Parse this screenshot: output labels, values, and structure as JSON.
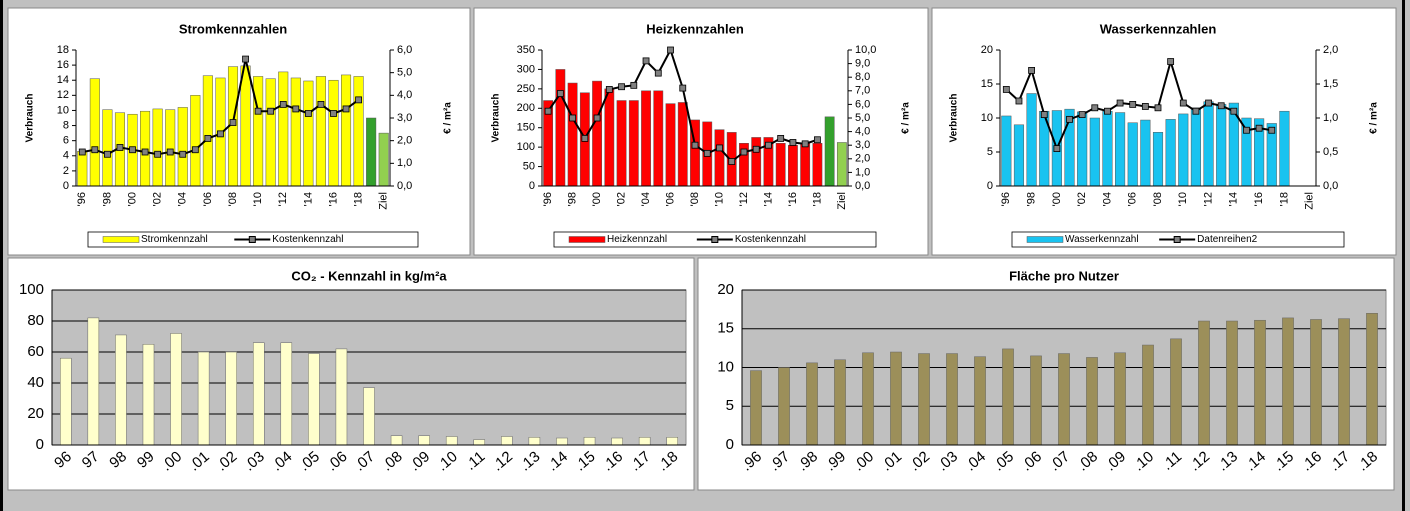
{
  "chart_data": [
    {
      "type": "combo",
      "title": "Stromkennzahlen",
      "ylabel": "Verbrauch",
      "y2label": "€ / m²a",
      "categories": [
        "'96",
        null,
        "'98",
        null,
        "'00",
        null,
        "'02",
        null,
        "'04",
        null,
        "'06",
        null,
        "'08",
        null,
        "'10",
        null,
        "'12",
        null,
        "'14",
        null,
        "'16",
        null,
        "'18",
        null,
        "Ziel"
      ],
      "ylim": [
        0,
        18
      ],
      "yticks": [
        0,
        2,
        4,
        6,
        8,
        10,
        12,
        14,
        16,
        18
      ],
      "y2lim": [
        0,
        6
      ],
      "y2ticks": [
        {
          "value": 0,
          "label": "0,0"
        },
        {
          "value": 1,
          "label": "1,0"
        },
        {
          "value": 2,
          "label": "2,0"
        },
        {
          "value": 3,
          "label": "3,0"
        },
        {
          "value": 4,
          "label": "4,0"
        },
        {
          "value": 5,
          "label": "5,0"
        },
        {
          "value": 6,
          "label": "6,0"
        }
      ],
      "target_colors": [
        "#33a02c",
        "#92d050"
      ],
      "series": [
        {
          "name": "Stromkennzahl",
          "color": "#ffff00",
          "values": [
            4.6,
            14.2,
            10.1,
            9.7,
            9.5,
            9.9,
            10.2,
            10.1,
            10.4,
            12.0,
            14.6,
            14.3,
            15.8,
            15.9,
            14.5,
            14.2,
            15.1,
            14.3,
            13.9,
            14.5,
            14.0,
            14.7,
            14.5,
            9.0,
            7.0
          ]
        },
        {
          "name": "Kostenkennzahl",
          "color": "#000000",
          "marker_color": "#808080",
          "axis": "y2",
          "values": [
            1.5,
            1.6,
            1.4,
            1.7,
            1.6,
            1.5,
            1.4,
            1.5,
            1.4,
            1.6,
            2.1,
            2.3,
            2.8,
            5.6,
            3.3,
            3.3,
            3.6,
            3.4,
            3.2,
            3.6,
            3.2,
            3.4,
            3.8,
            null,
            null
          ]
        }
      ]
    },
    {
      "type": "combo",
      "title": "Heizkennzahlen",
      "ylabel": "Verbrauch",
      "y2label": "€ / m²a",
      "categories": [
        "'96",
        null,
        "'98",
        null,
        "'00",
        null,
        "'02",
        null,
        "'04",
        null,
        "'06",
        null,
        "'08",
        null,
        "'10",
        null,
        "'12",
        null,
        "'14",
        null,
        "'16",
        null,
        "'18",
        null,
        "Ziel"
      ],
      "ylim": [
        0,
        350
      ],
      "yticks": [
        0,
        50,
        100,
        150,
        200,
        250,
        300,
        350
      ],
      "y2lim": [
        0,
        10
      ],
      "y2ticks": [
        {
          "value": 0,
          "label": "0,0"
        },
        {
          "value": 1,
          "label": "1,0"
        },
        {
          "value": 2,
          "label": "2,0"
        },
        {
          "value": 3,
          "label": "3,0"
        },
        {
          "value": 4,
          "label": "4,0"
        },
        {
          "value": 5,
          "label": "5,0"
        },
        {
          "value": 6,
          "label": "6,0"
        },
        {
          "value": 7,
          "label": "7,0"
        },
        {
          "value": 8,
          "label": "8,0"
        },
        {
          "value": 9,
          "label": "9,0"
        },
        {
          "value": 10,
          "label": "10,0"
        }
      ],
      "target_colors": [
        "#33a02c",
        "#92d050"
      ],
      "series": [
        {
          "name": "Heizkennzahl",
          "color": "#ff0000",
          "values": [
            220,
            300,
            265,
            240,
            270,
            250,
            220,
            220,
            245,
            245,
            212,
            215,
            170,
            165,
            145,
            138,
            110,
            125,
            125,
            110,
            105,
            110,
            110,
            178,
            112
          ]
        },
        {
          "name": "Kostenkennzahl",
          "color": "#000000",
          "marker_color": "#808080",
          "axis": "y2",
          "values": [
            5.5,
            6.8,
            5.0,
            3.5,
            5.0,
            7.1,
            7.3,
            7.4,
            9.2,
            8.3,
            10.0,
            7.2,
            3.0,
            2.4,
            2.8,
            1.8,
            2.5,
            2.7,
            3.0,
            3.5,
            3.2,
            3.1,
            3.4,
            null,
            null
          ]
        }
      ]
    },
    {
      "type": "combo",
      "title": "Wasserkennzahlen",
      "ylabel": "Verbrauch",
      "y2label": "€ / m²a",
      "categories": [
        "'96",
        null,
        "'98",
        null,
        "'00",
        null,
        "'02",
        null,
        "'04",
        null,
        "'06",
        null,
        "'08",
        null,
        "'10",
        null,
        "'12",
        null,
        "'14",
        null,
        "'16",
        null,
        "'18",
        null,
        "Ziel"
      ],
      "ylim": [
        0,
        20
      ],
      "yticks": [
        0,
        5,
        10,
        15,
        20
      ],
      "y2lim": [
        0,
        2
      ],
      "y2ticks": [
        {
          "value": 0,
          "label": "0,0"
        },
        {
          "value": 0.5,
          "label": "0,5"
        },
        {
          "value": 1,
          "label": "1,0"
        },
        {
          "value": 1.5,
          "label": "1,5"
        },
        {
          "value": 2,
          "label": "2,0"
        }
      ],
      "series": [
        {
          "name": "Wasserkennzahl",
          "color": "#19c3f0",
          "values": [
            10.3,
            9.0,
            13.6,
            11.0,
            11.1,
            11.3,
            10.9,
            10.0,
            11.0,
            10.8,
            9.3,
            9.7,
            7.9,
            9.8,
            10.6,
            11.5,
            12.4,
            12.0,
            12.2,
            10.0,
            9.9,
            9.2,
            11.0,
            null,
            null
          ]
        },
        {
          "name": "Datenreihen2",
          "color": "#000000",
          "marker_color": "#808080",
          "axis": "y2",
          "values": [
            1.42,
            1.25,
            1.7,
            1.05,
            0.55,
            0.98,
            1.05,
            1.15,
            1.1,
            1.22,
            1.2,
            1.17,
            1.15,
            1.83,
            1.22,
            1.1,
            1.22,
            1.18,
            1.1,
            0.82,
            0.85,
            0.82,
            null,
            null,
            null
          ]
        }
      ]
    },
    {
      "type": "bar",
      "title": "CO₂ - Kennzahl in kg/m²a",
      "categories": [
        "96",
        "97",
        "98",
        "99",
        ".00",
        ".01",
        ".02",
        ".03",
        ".04",
        ".05",
        ".06",
        ".07",
        ".08",
        ".09",
        ".10",
        ".11",
        ".12",
        ".13",
        ".14",
        ".15",
        ".16",
        ".17",
        ".18"
      ],
      "values": [
        56,
        82,
        71,
        65,
        72,
        60,
        60,
        66,
        66,
        59,
        62,
        37,
        6,
        6,
        5.5,
        3.5,
        5.5,
        5,
        4.5,
        5,
        4.5,
        5,
        5
      ],
      "color": "#ffffcc",
      "ylim": [
        0,
        100
      ],
      "yticks": [
        0,
        20,
        40,
        60,
        80,
        100
      ],
      "grid": true
    },
    {
      "type": "bar",
      "title": "Fläche pro Nutzer",
      "categories": [
        ".96",
        ".97",
        ".98",
        ".99",
        ".00",
        ".01",
        ".02",
        ".03",
        ".04",
        ".05",
        ".06",
        ".07",
        ".08",
        ".09",
        ".10",
        ".11",
        ".12",
        ".13",
        ".14",
        ".15",
        ".16",
        ".17",
        ".18"
      ],
      "values": [
        9.6,
        10.0,
        10.6,
        11.0,
        11.9,
        12.0,
        11.8,
        11.8,
        11.4,
        12.4,
        11.5,
        11.8,
        11.3,
        11.9,
        12.9,
        13.7,
        16.0,
        16.0,
        16.1,
        16.4,
        16.2,
        16.3,
        17.0
      ],
      "color": "#9c8f5a",
      "ylim": [
        0,
        20
      ],
      "yticks": [
        0,
        5,
        10,
        15,
        20
      ],
      "grid": true
    }
  ]
}
